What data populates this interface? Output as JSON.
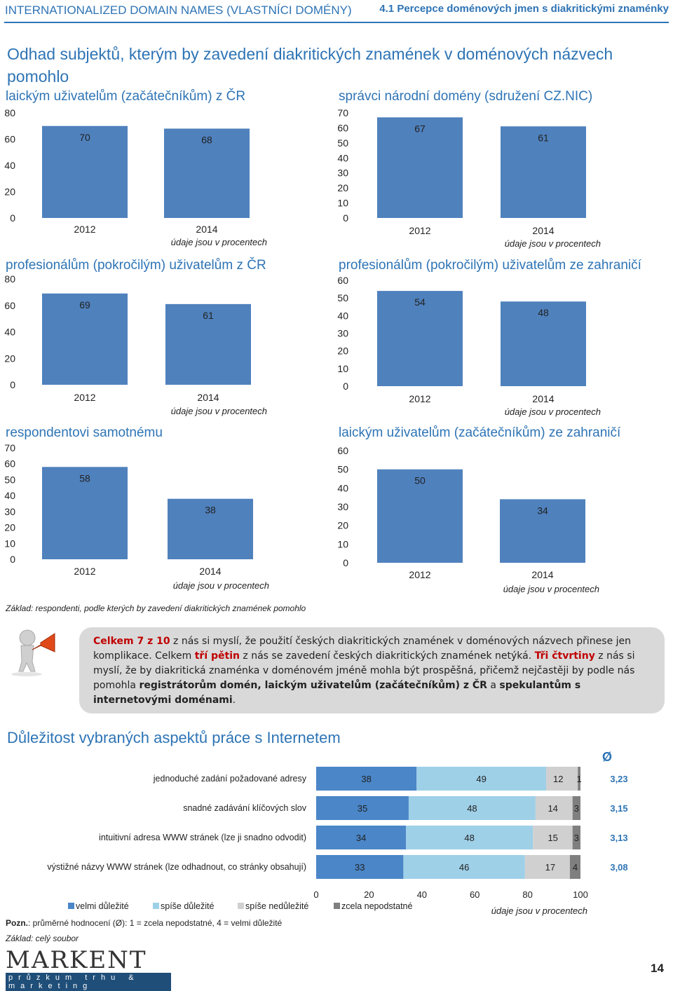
{
  "header": {
    "left": "INTERNATIONALIZED DOMAIN NAMES (VLASTNÍCI DOMÉNY)",
    "right": "4.1 Percepce doménových jmen s diakritickými znaménky"
  },
  "main_title": "Odhad subjektů, kterým by zavedení diakritických znamének v doménových názvech pomohlo",
  "note_base": "Základ: respondenti, podle kterých by zavedení diakritických znamének pomohlo",
  "callout": {
    "s1a": "Celkem 7 z 10",
    "s1b": " z nás si myslí, že použití českých diakritických znamének v doménových názvech přinese jen komplikace. Celkem ",
    "s1c": "tří pětin",
    "s1d": " z nás se zavedení českých diakritických znamének netýká. ",
    "s2a": "Tři čtvrtiny",
    "s2b": " z nás si myslí, že by diakritická znaménka v doménovém jméně mohla být prospěšná, přičemž nejčastěji by podle nás pomohla ",
    "s2c": "registrátorům domén, laickým uživatelům (začátečníkům) z ČR",
    "s2d": " a ",
    "s2e": "spekulantům s internetovými doménami",
    "s2f": "."
  },
  "section2_title": "Důležitost vybraných aspektů práce s Internetem",
  "avg_symbol": "Ø",
  "pozn_label": "Pozn.",
  "pozn_text": ": průměrné hodnocení (Ø): 1 = zcela nepodstatné, 4 = velmi důležité",
  "note_all": "Základ: celý soubor",
  "logo": {
    "main": "MARKENT",
    "sub": "průzkum trhu & marketing"
  },
  "page_number": "14",
  "colors": {
    "title": "#2e74b5",
    "bar": "#4f81bd",
    "velmi": "#4a86c8",
    "spise": "#9ed0e8",
    "nedulezite": "#d0d0d0",
    "nepodstatne": "#7f7f7f",
    "avg": "#2e74b5"
  },
  "chart_data": [
    {
      "type": "bar",
      "title": "laickým uživatelům (začátečníkům) z ČR",
      "categories": [
        "2012",
        "2014"
      ],
      "values": [
        70,
        68
      ],
      "ylim": [
        0,
        80
      ],
      "yticks": [
        0,
        20,
        40,
        60,
        80
      ],
      "unit_note": "údaje jsou v procentech"
    },
    {
      "type": "bar",
      "title": "správci národní domény (sdružení CZ.NIC)",
      "categories": [
        "2012",
        "2014"
      ],
      "values": [
        67,
        61
      ],
      "ylim": [
        0,
        70
      ],
      "yticks": [
        0,
        10,
        20,
        30,
        40,
        50,
        60,
        70
      ],
      "unit_note": "údaje jsou v procentech"
    },
    {
      "type": "bar",
      "title": "profesionálům (pokročilým) uživatelům z ČR",
      "categories": [
        "2012",
        "2014"
      ],
      "values": [
        69,
        61
      ],
      "ylim": [
        0,
        80
      ],
      "yticks": [
        0,
        20,
        40,
        60,
        80
      ],
      "unit_note": "údaje jsou v procentech"
    },
    {
      "type": "bar",
      "title": "profesionálům (pokročilým) uživatelům ze zahraničí",
      "categories": [
        "2012",
        "2014"
      ],
      "values": [
        54,
        48
      ],
      "ylim": [
        0,
        60
      ],
      "yticks": [
        0,
        10,
        20,
        30,
        40,
        50,
        60
      ],
      "unit_note": "údaje jsou v procentech"
    },
    {
      "type": "bar",
      "title": "respondentovi samotnému",
      "categories": [
        "2012",
        "2014"
      ],
      "values": [
        58,
        38
      ],
      "ylim": [
        0,
        70
      ],
      "yticks": [
        0,
        10,
        20,
        30,
        40,
        50,
        60,
        70
      ],
      "unit_note": "údaje jsou v procentech"
    },
    {
      "type": "bar",
      "title": "laickým uživatelům (začátečníkům) ze zahraničí",
      "categories": [
        "2012",
        "2014"
      ],
      "values": [
        50,
        34
      ],
      "ylim": [
        0,
        60
      ],
      "yticks": [
        0,
        10,
        20,
        30,
        40,
        50,
        60
      ],
      "unit_note": "údaje jsou v procentech"
    },
    {
      "type": "bar",
      "stacked": true,
      "orientation": "horizontal",
      "categories": [
        "jednoduché zadání požadované adresy",
        "snadné zadávání klíčových slov",
        "intuitivní adresa WWW stránek (lze ji snadno odvodit)",
        "výstižné názvy WWW stránek (lze odhadnout, co stránky obsahují)"
      ],
      "series": [
        {
          "name": "velmi důležité",
          "values": [
            38,
            35,
            34,
            33
          ]
        },
        {
          "name": "spíše důležité",
          "values": [
            49,
            48,
            48,
            46
          ]
        },
        {
          "name": "spíše nedůležité",
          "values": [
            12,
            14,
            15,
            17
          ]
        },
        {
          "name": "zcela nepodstatné",
          "values": [
            1,
            3,
            3,
            4
          ]
        }
      ],
      "averages": [
        "3,23",
        "3,15",
        "3,13",
        "3,08"
      ],
      "xlim": [
        0,
        100
      ],
      "xticks": [
        0,
        20,
        40,
        60,
        80,
        100
      ],
      "unit_note": "údaje jsou v procentech"
    }
  ]
}
